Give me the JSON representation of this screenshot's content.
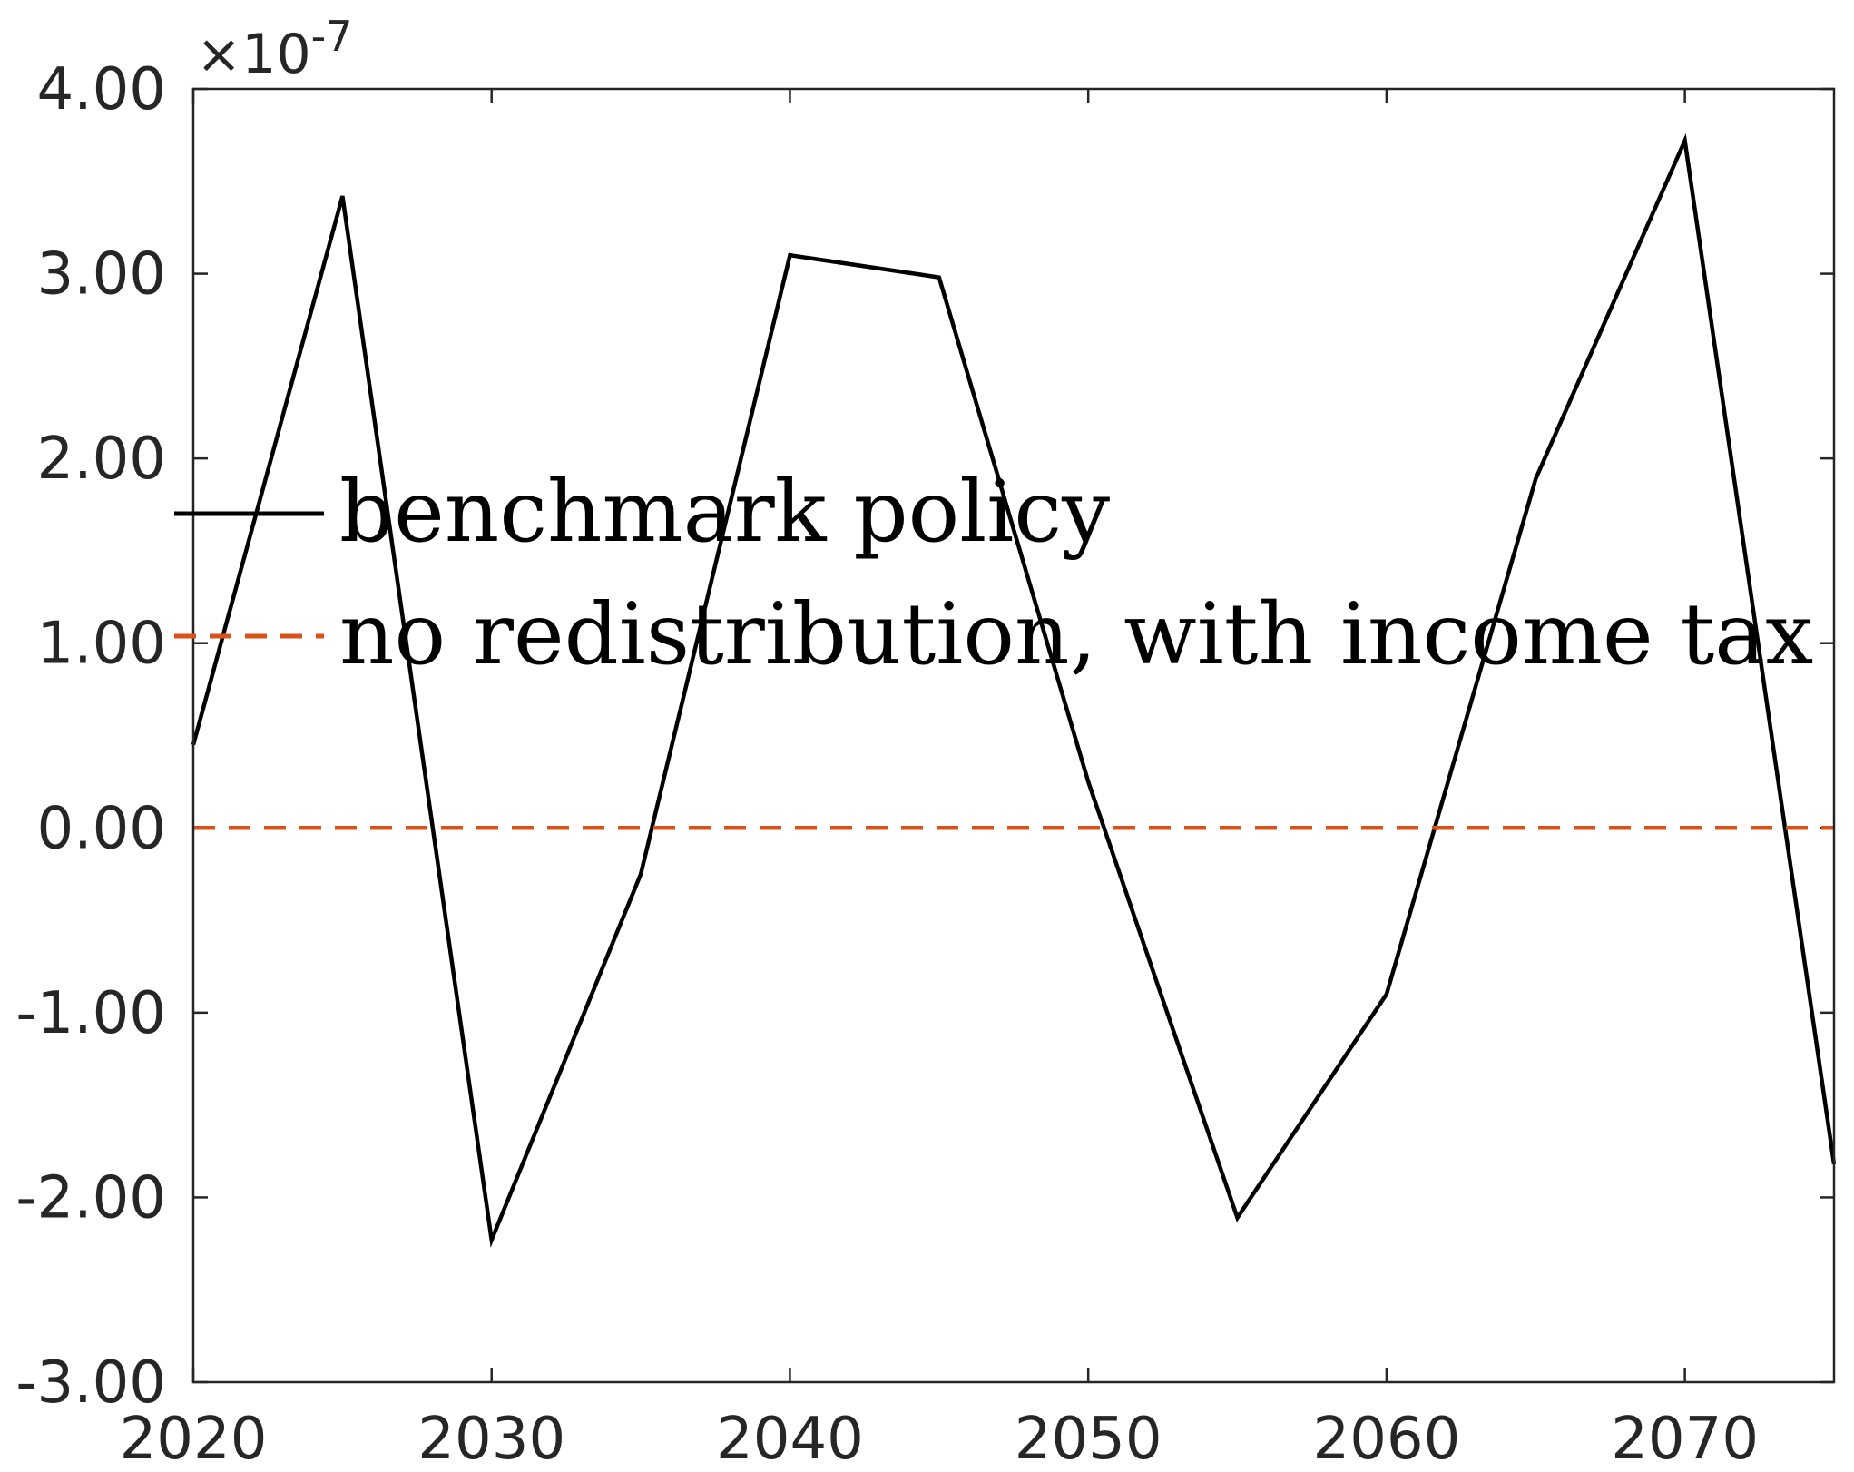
{
  "chart_data": {
    "type": "line",
    "title": "",
    "xlabel": "",
    "ylabel": "",
    "exponent_label": {
      "base": "×10",
      "power": "-7"
    },
    "xlim": [
      2020,
      2075
    ],
    "ylim": [
      -3,
      4
    ],
    "x_ticks": [
      2020,
      2030,
      2040,
      2050,
      2060,
      2070
    ],
    "x_tick_labels": [
      "2020",
      "2030",
      "2040",
      "2050",
      "2060",
      "2070"
    ],
    "y_ticks": [
      -3,
      -2,
      -1,
      0,
      1,
      2,
      3,
      4
    ],
    "y_tick_labels": [
      "-3.00",
      "-2.00",
      "-1.00",
      "0.00",
      "1.00",
      "2.00",
      "3.00",
      "4.00"
    ],
    "y_scale_factor": 1e-07,
    "grid": false,
    "legend_position": "upper-left",
    "series": [
      {
        "name": "benchmark policy",
        "color": "#000000",
        "style": "solid",
        "x": [
          2020,
          2025,
          2030,
          2035,
          2040,
          2045,
          2050,
          2055,
          2060,
          2065,
          2070,
          2075
        ],
        "y": [
          0.45,
          3.42,
          -2.23,
          -0.25,
          3.1,
          2.98,
          0.25,
          -2.11,
          -0.9,
          1.89,
          3.72,
          -1.82
        ]
      },
      {
        "name": "no redistribution, with income tax",
        "color": "#D95319",
        "style": "dashed",
        "x": [
          2020,
          2075
        ],
        "y": [
          0,
          0
        ]
      }
    ]
  }
}
